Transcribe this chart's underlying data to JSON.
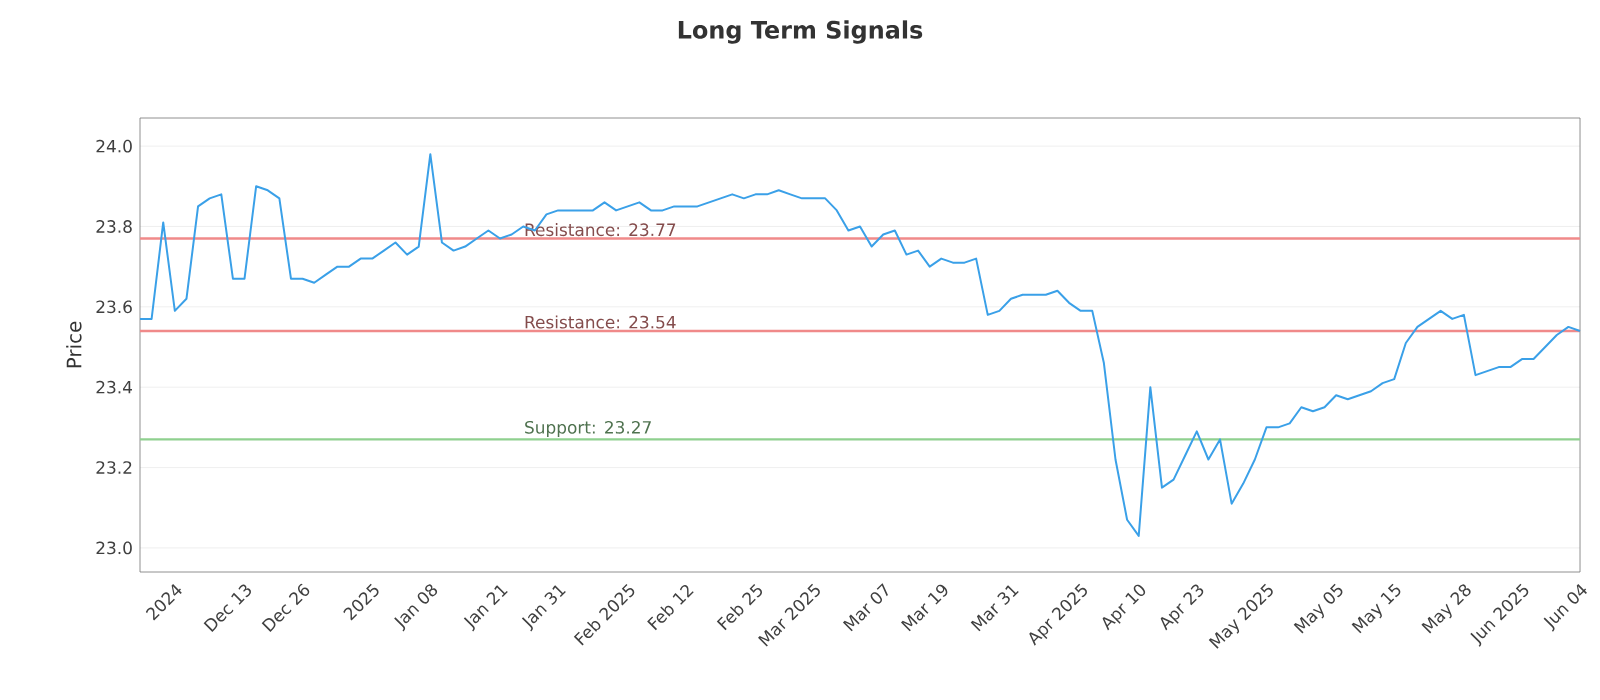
{
  "chart_data": {
    "type": "line",
    "title": "Long Term Signals",
    "ylabel": "Price",
    "categories": [
      null,
      null,
      null,
      "2024",
      null,
      null,
      null,
      null,
      null,
      "Dec 13",
      null,
      null,
      null,
      null,
      "Dec 26",
      null,
      null,
      null,
      null,
      null,
      "2025",
      null,
      null,
      null,
      null,
      "Jan 08",
      null,
      null,
      null,
      null,
      null,
      "Jan 21",
      null,
      null,
      null,
      null,
      "Jan 31",
      null,
      null,
      null,
      null,
      null,
      "Feb 2025",
      null,
      null,
      null,
      null,
      "Feb 12",
      null,
      null,
      null,
      null,
      null,
      "Feb 25",
      null,
      null,
      null,
      null,
      "Mar 2025",
      null,
      null,
      null,
      null,
      null,
      "Mar 07",
      null,
      null,
      null,
      null,
      "Mar 19",
      null,
      null,
      null,
      null,
      null,
      "Mar 31",
      null,
      null,
      null,
      null,
      null,
      "Apr 2025",
      null,
      null,
      null,
      null,
      "Apr 10",
      null,
      null,
      null,
      null,
      "Apr 23",
      null,
      null,
      null,
      null,
      null,
      "May 2025",
      null,
      null,
      null,
      null,
      null,
      "May 05",
      null,
      null,
      null,
      null,
      "May 15",
      null,
      null,
      null,
      null,
      null,
      "May 28",
      null,
      null,
      null,
      null,
      "Jun 2025",
      null,
      null,
      null,
      null,
      "Jun 04"
    ],
    "series": [
      {
        "color": "#3aa0e8",
        "values": [
          23.57,
          23.57,
          23.81,
          23.59,
          23.62,
          23.85,
          23.87,
          23.88,
          23.67,
          23.67,
          23.9,
          23.89,
          23.87,
          23.67,
          23.67,
          23.66,
          23.68,
          23.7,
          23.7,
          23.72,
          23.72,
          23.74,
          23.76,
          23.73,
          23.75,
          23.98,
          23.76,
          23.74,
          23.75,
          23.77,
          23.79,
          23.77,
          23.78,
          23.8,
          23.79,
          23.83,
          23.84,
          23.84,
          23.84,
          23.84,
          23.86,
          23.84,
          23.85,
          23.86,
          23.84,
          23.84,
          23.85,
          23.85,
          23.85,
          23.86,
          23.87,
          23.88,
          23.87,
          23.88,
          23.88,
          23.89,
          23.88,
          23.87,
          23.87,
          23.87,
          23.84,
          23.79,
          23.8,
          23.75,
          23.78,
          23.79,
          23.73,
          23.74,
          23.7,
          23.72,
          23.71,
          23.71,
          23.72,
          23.58,
          23.59,
          23.62,
          23.63,
          23.63,
          23.63,
          23.64,
          23.61,
          23.59,
          23.59,
          23.46,
          23.22,
          23.07,
          23.03,
          23.4,
          23.15,
          23.17,
          23.23,
          23.29,
          23.22,
          23.27,
          23.11,
          23.16,
          23.22,
          23.3,
          23.3,
          23.31,
          23.35,
          23.34,
          23.35,
          23.38,
          23.37,
          23.38,
          23.39,
          23.41,
          23.42,
          23.51,
          23.55,
          23.57,
          23.59,
          23.57,
          23.58,
          23.43,
          23.44,
          23.45,
          23.45,
          23.47,
          23.47,
          23.5,
          23.53,
          23.55,
          23.54
        ]
      }
    ],
    "ylim": [
      22.94,
      24.07
    ],
    "yticks": [
      {
        "value": 23,
        "label": "23.0"
      },
      {
        "value": 23.2,
        "label": "23.2"
      },
      {
        "value": 23.4,
        "label": "23.4"
      },
      {
        "value": 23.6,
        "label": "23.6"
      },
      {
        "value": 23.8,
        "label": "23.8"
      },
      {
        "value": 24,
        "label": "24.0"
      }
    ],
    "grid": "y",
    "legend": false,
    "marker": "none",
    "line_style": "solid",
    "ref_lines": [
      {
        "axis": "y",
        "value": 23.77,
        "label": "Resistance: 23.77",
        "color": "#f08a8a"
      },
      {
        "axis": "y",
        "value": 23.54,
        "label": "Resistance: 23.54",
        "color": "#f08a8a"
      },
      {
        "axis": "y",
        "value": 23.27,
        "label": "Support: 23.27",
        "color": "#8fd08f"
      }
    ]
  }
}
